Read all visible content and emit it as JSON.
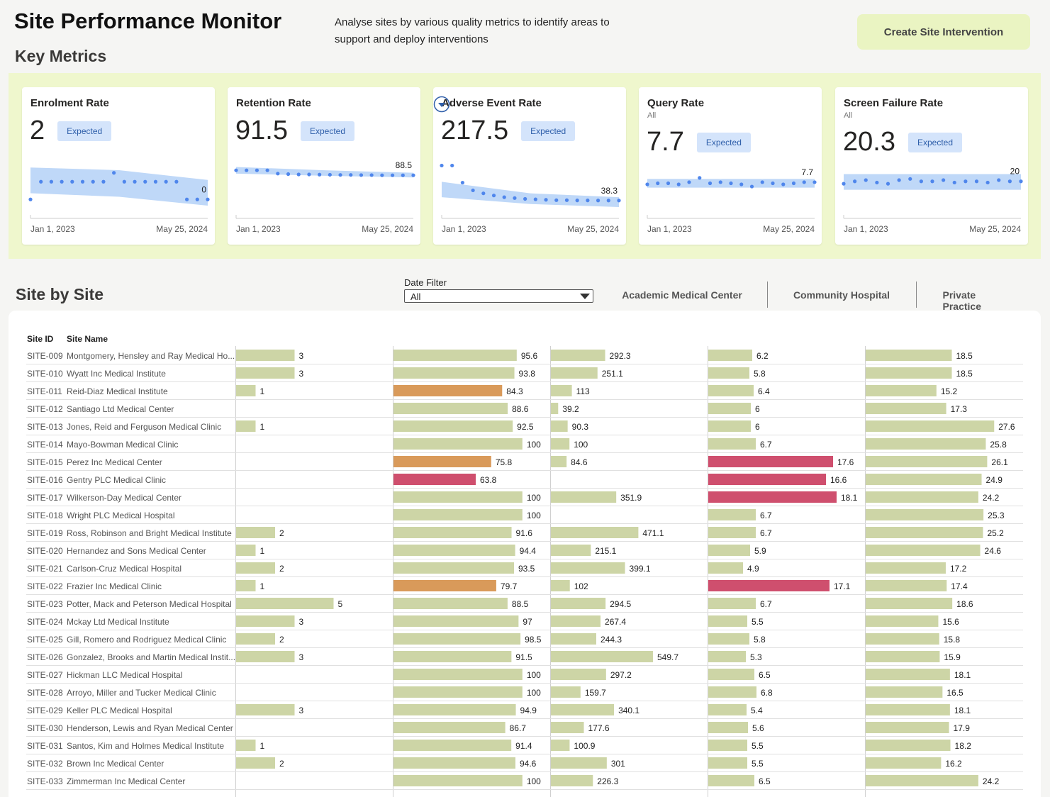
{
  "header": {
    "title": "Site Performance Monitor",
    "description": "Analyse sites by various quality metrics to identify areas to support and deploy interventions",
    "button": "Create Site Intervention"
  },
  "key_metrics": {
    "title": "Key Metrics",
    "cards": [
      {
        "title": "Enrolment Rate",
        "value": 2,
        "status": "Expected",
        "x_start": "Jan 1, 2023",
        "x_end": "May 25, 2024",
        "ylim": [
          -1.1,
          4.5
        ],
        "points": [
          0,
          2,
          2,
          2,
          2,
          2,
          2,
          2,
          3,
          2,
          2,
          2,
          2,
          2,
          2,
          0,
          0,
          0
        ],
        "band_low": [
          0.7,
          0.3,
          -0.7
        ],
        "band_high": [
          3.6,
          3.3,
          2.2
        ],
        "last_label": 0
      },
      {
        "title": "Retention Rate",
        "value": 91.5,
        "status": "Expected",
        "x_start": "Jan 1, 2023",
        "x_end": "May 25, 2024",
        "ylim": [
          68,
          98
        ],
        "points": [
          91.5,
          91.5,
          91.5,
          91.5,
          89.5,
          89.2,
          89,
          89,
          88.9,
          88.8,
          88.7,
          88.7,
          88.6,
          88.6,
          88.5,
          88.5,
          88.5,
          88.5
        ],
        "band_low": [
          89.5,
          88.2,
          87.2
        ],
        "band_high": [
          93.5,
          91.5,
          90
        ],
        "last_label": 88.5
      },
      {
        "title": "Adverse Event Rate",
        "value": 217.5,
        "status": "Expected",
        "x_start": "Jan 1, 2023",
        "x_end": "May 25, 2024",
        "ylim": [
          18,
          134
        ],
        "points": [
          120,
          120,
          80,
          62,
          55,
          50,
          46,
          44,
          42,
          41,
          40,
          39,
          39,
          38.5,
          38.5,
          38.3,
          38.3,
          38.3
        ],
        "band_low": [
          46,
          30,
          23
        ],
        "band_high": [
          82,
          55,
          46
        ],
        "last_label": 38.3
      },
      {
        "title": "Query Rate",
        "subtitle": "All",
        "value": 7.7,
        "status": "Expected",
        "x_start": "Jan 1, 2023",
        "x_end": "May 25, 2024",
        "ylim": [
          5.2,
          9.8
        ],
        "points": [
          7.5,
          7.6,
          7.6,
          7.5,
          7.7,
          8.1,
          7.6,
          7.7,
          7.6,
          7.5,
          7.3,
          7.7,
          7.6,
          7.5,
          7.6,
          7.7,
          7.7
        ],
        "band_low": [
          7.2,
          7.2,
          7.2
        ],
        "band_high": [
          8,
          8,
          8
        ],
        "last_label": 7.7
      },
      {
        "title": "Screen Failure Rate",
        "subtitle": "All",
        "value": 20.3,
        "status": "Expected",
        "x_start": "Jan 1, 2023",
        "x_end": "May 25, 2024",
        "ylim": [
          17.7,
          21.8
        ],
        "points": [
          19.8,
          20,
          20.1,
          19.9,
          19.8,
          20.1,
          20.2,
          20,
          20,
          20.1,
          19.9,
          20,
          20,
          19.9,
          20.1,
          20,
          20
        ],
        "band_low": [
          19.3,
          19.3,
          19.3
        ],
        "band_high": [
          20.6,
          20.6,
          20.6
        ],
        "last_label": 20
      }
    ]
  },
  "site_by_site": {
    "title": "Site by Site",
    "date_filter": {
      "label": "Date Filter",
      "value": "All"
    },
    "tabs": [
      "Academic Medical Center",
      "Community Hospital",
      "Private Practice"
    ],
    "table": {
      "columns": [
        "Site ID",
        "Site Name"
      ],
      "metric_xlim": [
        [
          0,
          8
        ],
        [
          0,
          121
        ],
        [
          0,
          840
        ],
        [
          0,
          22
        ],
        [
          0,
          33.5
        ]
      ],
      "colors": {
        "normal": "#cdd5a6",
        "warning": "#d99a5a",
        "alert": "#cf4f6e"
      },
      "highlights": [
        {
          "row": 2,
          "col": 1,
          "level": "warning"
        },
        {
          "row": 6,
          "col": 1,
          "level": "warning"
        },
        {
          "row": 6,
          "col": 3,
          "level": "alert"
        },
        {
          "row": 7,
          "col": 1,
          "level": "alert"
        },
        {
          "row": 7,
          "col": 3,
          "level": "alert"
        },
        {
          "row": 8,
          "col": 3,
          "level": "alert"
        },
        {
          "row": 13,
          "col": 1,
          "level": "warning"
        },
        {
          "row": 13,
          "col": 3,
          "level": "alert"
        }
      ],
      "rows": [
        {
          "id": "SITE-009",
          "name": "Montgomery, Hensley and Ray Medical Ho...",
          "values": [
            3,
            95.6,
            292.3,
            6.2,
            18.5
          ]
        },
        {
          "id": "SITE-010",
          "name": "Wyatt Inc Medical Institute",
          "values": [
            3,
            93.8,
            251.1,
            5.8,
            18.5
          ]
        },
        {
          "id": "SITE-011",
          "name": "Reid-Diaz Medical Institute",
          "values": [
            1,
            84.3,
            113,
            6.4,
            15.2
          ]
        },
        {
          "id": "SITE-012",
          "name": "Santiago Ltd Medical Center",
          "values": [
            null,
            88.6,
            39.2,
            6,
            17.3
          ]
        },
        {
          "id": "SITE-013",
          "name": "Jones, Reid and Ferguson Medical Clinic",
          "values": [
            1,
            92.5,
            90.3,
            6,
            27.6
          ]
        },
        {
          "id": "SITE-014",
          "name": "Mayo-Bowman Medical Clinic",
          "values": [
            null,
            100,
            100,
            6.7,
            25.8
          ]
        },
        {
          "id": "SITE-015",
          "name": "Perez Inc Medical Center",
          "values": [
            null,
            75.8,
            84.6,
            17.6,
            26.1
          ]
        },
        {
          "id": "SITE-016",
          "name": "Gentry PLC Medical Clinic",
          "values": [
            null,
            63.8,
            null,
            16.6,
            24.9
          ]
        },
        {
          "id": "SITE-017",
          "name": "Wilkerson-Day Medical Center",
          "values": [
            null,
            100,
            351.9,
            18.1,
            24.2
          ]
        },
        {
          "id": "SITE-018",
          "name": "Wright PLC Medical Hospital",
          "values": [
            null,
            100,
            null,
            6.7,
            25.3
          ]
        },
        {
          "id": "SITE-019",
          "name": "Ross, Robinson and Bright Medical Institute",
          "values": [
            2,
            91.6,
            471.1,
            6.7,
            25.2
          ]
        },
        {
          "id": "SITE-020",
          "name": "Hernandez and Sons Medical Center",
          "values": [
            1,
            94.4,
            215.1,
            5.9,
            24.6
          ]
        },
        {
          "id": "SITE-021",
          "name": "Carlson-Cruz Medical Hospital",
          "values": [
            2,
            93.5,
            399.1,
            4.9,
            17.2
          ]
        },
        {
          "id": "SITE-022",
          "name": "Frazier Inc Medical Clinic",
          "values": [
            1,
            79.7,
            102,
            17.1,
            17.4
          ]
        },
        {
          "id": "SITE-023",
          "name": "Potter, Mack and Peterson Medical Hospital",
          "values": [
            5,
            88.5,
            294.5,
            6.7,
            18.6
          ]
        },
        {
          "id": "SITE-024",
          "name": "Mckay Ltd Medical Institute",
          "values": [
            3,
            97,
            267.4,
            5.5,
            15.6
          ]
        },
        {
          "id": "SITE-025",
          "name": "Gill, Romero and Rodriguez Medical Clinic",
          "values": [
            2,
            98.5,
            244.3,
            5.8,
            15.8
          ]
        },
        {
          "id": "SITE-026",
          "name": "Gonzalez, Brooks and Martin Medical Instit...",
          "values": [
            3,
            91.5,
            549.7,
            5.3,
            15.9
          ]
        },
        {
          "id": "SITE-027",
          "name": "Hickman LLC Medical Hospital",
          "values": [
            null,
            100,
            297.2,
            6.5,
            18.1
          ]
        },
        {
          "id": "SITE-028",
          "name": "Arroyo, Miller and Tucker Medical Clinic",
          "values": [
            null,
            100,
            159.7,
            6.8,
            16.5
          ]
        },
        {
          "id": "SITE-029",
          "name": "Keller PLC Medical Hospital",
          "values": [
            3,
            94.9,
            340.1,
            5.4,
            18.1
          ]
        },
        {
          "id": "SITE-030",
          "name": "Henderson, Lewis and Ryan Medical Center",
          "values": [
            null,
            86.7,
            177.6,
            5.6,
            17.9
          ]
        },
        {
          "id": "SITE-031",
          "name": "Santos, Kim and Holmes Medical Institute",
          "values": [
            1,
            91.4,
            100.9,
            5.5,
            18.2
          ]
        },
        {
          "id": "SITE-032",
          "name": "Brown Inc Medical Center",
          "values": [
            2,
            94.6,
            301,
            5.5,
            16.2
          ]
        },
        {
          "id": "SITE-033",
          "name": "Zimmerman Inc Medical Center",
          "values": [
            null,
            100,
            226.3,
            6.5,
            24.2
          ]
        }
      ]
    }
  }
}
